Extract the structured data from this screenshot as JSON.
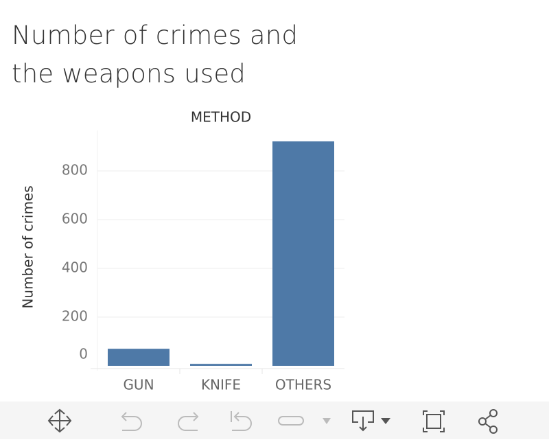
{
  "chart_data": {
    "type": "bar",
    "title": "Number of crimes and the weapons used",
    "x_label": "METHOD",
    "y_label": "Number of crimes",
    "categories": [
      "GUN",
      "KNIFE",
      "OTHERS"
    ],
    "values": [
      70,
      8,
      921
    ],
    "color": "#4e79a7",
    "ylim": [
      0,
      966
    ],
    "yticks": [
      0,
      200,
      400,
      600,
      800
    ],
    "grid": true
  }
}
